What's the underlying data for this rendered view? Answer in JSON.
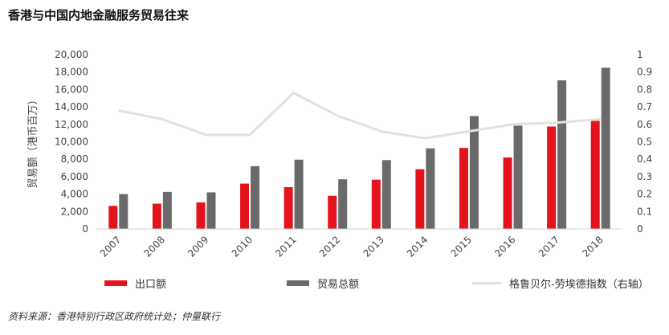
{
  "title": "香港与中国内地金融服务贸易往来",
  "source": "资料来源：香港特别行政区政府统计处；仲量联行",
  "colors": {
    "export": "#e3141b",
    "total": "#6a6a6a",
    "index": "#e4e1d8"
  },
  "chart_data": {
    "type": "bar",
    "categories": [
      "2007",
      "2008",
      "2009",
      "2010",
      "2011",
      "2012",
      "2013",
      "2014",
      "2015",
      "2016",
      "2017",
      "2018"
    ],
    "series": [
      {
        "name": "出口额",
        "type": "bar",
        "axis": "left",
        "values": [
          2650,
          2900,
          3050,
          5200,
          4800,
          3800,
          5650,
          6850,
          9300,
          8200,
          11750,
          12400
        ]
      },
      {
        "name": "贸易总额",
        "type": "bar",
        "axis": "left",
        "values": [
          4000,
          4250,
          4200,
          7200,
          7950,
          5700,
          7900,
          9250,
          12950,
          11850,
          17050,
          18500
        ]
      },
      {
        "name": "格鲁贝尔-劳埃德指数（右轴）",
        "type": "line",
        "axis": "right",
        "values": [
          0.68,
          0.63,
          0.54,
          0.54,
          0.78,
          0.65,
          0.56,
          0.52,
          0.56,
          0.6,
          0.61,
          0.63
        ]
      }
    ],
    "ylabel": "贸易额（港币百万）",
    "ylim": [
      0,
      20000
    ],
    "yticks": [
      "0",
      "2,000",
      "4,000",
      "6,000",
      "8,000",
      "10,000",
      "12,000",
      "14,000",
      "16,000",
      "18,000",
      "20,000"
    ],
    "y2lim": [
      0,
      1
    ],
    "y2ticks": [
      "0",
      "0.1",
      "0.2",
      "0.3",
      "0.4",
      "0.5",
      "0.6",
      "0.7",
      "0.8",
      "0.9",
      "1"
    ],
    "grid": false,
    "legend": "bottom"
  }
}
